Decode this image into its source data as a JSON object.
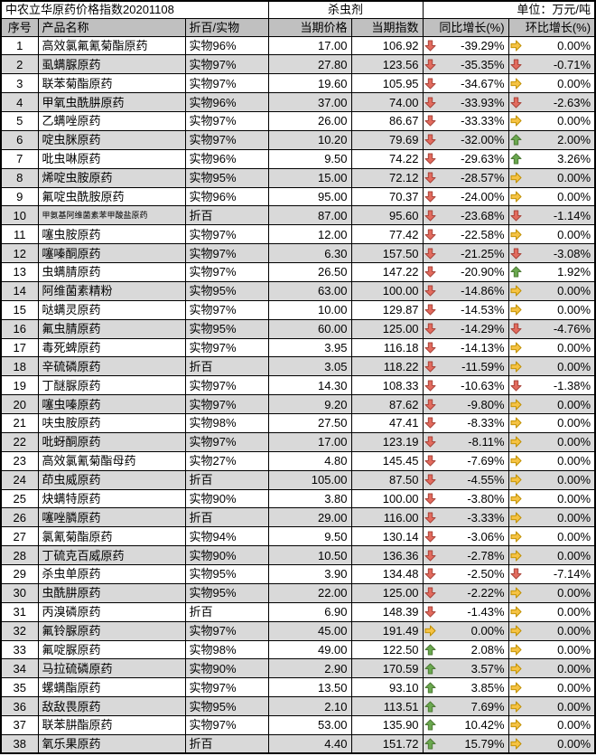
{
  "header": {
    "title": "中农立华原药价格指数20201108",
    "category": "杀虫剂",
    "unit": "单位：万元/吨"
  },
  "columns": [
    "序号",
    "产品名称",
    "折百/实物",
    "当期价格",
    "当期指数",
    "同比增长(%)",
    "环比增长(%)"
  ],
  "colors": {
    "header_bg": "#c0c0c0",
    "stripe_bg": "#d9d9d9",
    "border": "#000000",
    "arrow_up_fill": "#6aa84f",
    "arrow_up_stroke": "#4e7a35",
    "arrow_down_fill": "#e26b5e",
    "arrow_down_stroke": "#a9443a",
    "arrow_flat_fill": "#f5c243",
    "arrow_flat_stroke": "#bf8f00"
  },
  "icons": {
    "up": "arrow-up-icon",
    "down": "arrow-down-icon",
    "flat": "arrow-right-icon"
  },
  "rows": [
    {
      "no": "1",
      "name": "高效氯氟氰菊酯原药",
      "spec": "实物96%",
      "price": "17.00",
      "index": "106.92",
      "yoy_icon": "down",
      "yoy": "-39.29%",
      "mom_icon": "flat",
      "mom": "0.00%"
    },
    {
      "no": "2",
      "name": "虱螨脲原药",
      "spec": "实物97%",
      "price": "27.80",
      "index": "123.56",
      "yoy_icon": "down",
      "yoy": "-35.35%",
      "mom_icon": "down",
      "mom": "-0.71%"
    },
    {
      "no": "3",
      "name": "联苯菊酯原药",
      "spec": "实物97%",
      "price": "19.60",
      "index": "105.95",
      "yoy_icon": "down",
      "yoy": "-34.67%",
      "mom_icon": "flat",
      "mom": "0.00%"
    },
    {
      "no": "4",
      "name": "甲氧虫酰肼原药",
      "spec": "实物96%",
      "price": "37.00",
      "index": "74.00",
      "yoy_icon": "down",
      "yoy": "-33.93%",
      "mom_icon": "down",
      "mom": "-2.63%"
    },
    {
      "no": "5",
      "name": "乙螨唑原药",
      "spec": "实物97%",
      "price": "26.00",
      "index": "86.67",
      "yoy_icon": "down",
      "yoy": "-33.33%",
      "mom_icon": "flat",
      "mom": "0.00%"
    },
    {
      "no": "6",
      "name": "啶虫脒原药",
      "spec": "实物97%",
      "price": "10.20",
      "index": "79.69",
      "yoy_icon": "down",
      "yoy": "-32.00%",
      "mom_icon": "up",
      "mom": "2.00%"
    },
    {
      "no": "7",
      "name": "吡虫啉原药",
      "spec": "实物96%",
      "price": "9.50",
      "index": "74.22",
      "yoy_icon": "down",
      "yoy": "-29.63%",
      "mom_icon": "up",
      "mom": "3.26%"
    },
    {
      "no": "8",
      "name": "烯啶虫胺原药",
      "spec": "实物95%",
      "price": "15.00",
      "index": "72.12",
      "yoy_icon": "down",
      "yoy": "-28.57%",
      "mom_icon": "flat",
      "mom": "0.00%"
    },
    {
      "no": "9",
      "name": "氟啶虫酰胺原药",
      "spec": "实物96%",
      "price": "95.00",
      "index": "70.37",
      "yoy_icon": "down",
      "yoy": "-24.00%",
      "mom_icon": "flat",
      "mom": "0.00%"
    },
    {
      "no": "10",
      "name": "甲氨基阿维菌素苯甲酸盐原药",
      "spec": "折百",
      "price": "87.00",
      "index": "95.60",
      "yoy_icon": "down",
      "yoy": "-23.68%",
      "mom_icon": "down",
      "mom": "-1.14%"
    },
    {
      "no": "11",
      "name": "噻虫胺原药",
      "spec": "实物97%",
      "price": "12.00",
      "index": "77.42",
      "yoy_icon": "down",
      "yoy": "-22.58%",
      "mom_icon": "flat",
      "mom": "0.00%"
    },
    {
      "no": "12",
      "name": "噻嗪酮原药",
      "spec": "实物97%",
      "price": "6.30",
      "index": "157.50",
      "yoy_icon": "down",
      "yoy": "-21.25%",
      "mom_icon": "down",
      "mom": "-3.08%"
    },
    {
      "no": "13",
      "name": "虫螨腈原药",
      "spec": "实物97%",
      "price": "26.50",
      "index": "147.22",
      "yoy_icon": "down",
      "yoy": "-20.90%",
      "mom_icon": "up",
      "mom": "1.92%"
    },
    {
      "no": "14",
      "name": "阿维菌素精粉",
      "spec": "实物95%",
      "price": "63.00",
      "index": "100.00",
      "yoy_icon": "down",
      "yoy": "-14.86%",
      "mom_icon": "flat",
      "mom": "0.00%"
    },
    {
      "no": "15",
      "name": "哒螨灵原药",
      "spec": "实物97%",
      "price": "10.00",
      "index": "129.87",
      "yoy_icon": "down",
      "yoy": "-14.53%",
      "mom_icon": "flat",
      "mom": "0.00%"
    },
    {
      "no": "16",
      "name": "氟虫腈原药",
      "spec": "实物95%",
      "price": "60.00",
      "index": "125.00",
      "yoy_icon": "down",
      "yoy": "-14.29%",
      "mom_icon": "down",
      "mom": "-4.76%"
    },
    {
      "no": "17",
      "name": "毒死蜱原药",
      "spec": "实物97%",
      "price": "3.95",
      "index": "116.18",
      "yoy_icon": "down",
      "yoy": "-14.13%",
      "mom_icon": "flat",
      "mom": "0.00%"
    },
    {
      "no": "18",
      "name": "辛硫磷原药",
      "spec": "折百",
      "price": "3.05",
      "index": "118.22",
      "yoy_icon": "down",
      "yoy": "-11.59%",
      "mom_icon": "flat",
      "mom": "0.00%"
    },
    {
      "no": "19",
      "name": "丁醚脲原药",
      "spec": "实物97%",
      "price": "14.30",
      "index": "108.33",
      "yoy_icon": "down",
      "yoy": "-10.63%",
      "mom_icon": "down",
      "mom": "-1.38%"
    },
    {
      "no": "20",
      "name": "噻虫嗪原药",
      "spec": "实物97%",
      "price": "9.20",
      "index": "87.62",
      "yoy_icon": "down",
      "yoy": "-9.80%",
      "mom_icon": "flat",
      "mom": "0.00%"
    },
    {
      "no": "21",
      "name": "呋虫胺原药",
      "spec": "实物98%",
      "price": "27.50",
      "index": "47.41",
      "yoy_icon": "down",
      "yoy": "-8.33%",
      "mom_icon": "flat",
      "mom": "0.00%"
    },
    {
      "no": "22",
      "name": "吡蚜酮原药",
      "spec": "实物97%",
      "price": "17.00",
      "index": "123.19",
      "yoy_icon": "down",
      "yoy": "-8.11%",
      "mom_icon": "flat",
      "mom": "0.00%"
    },
    {
      "no": "23",
      "name": "高效氯氰菊酯母药",
      "spec": "实物27%",
      "price": "4.80",
      "index": "145.45",
      "yoy_icon": "down",
      "yoy": "-7.69%",
      "mom_icon": "flat",
      "mom": "0.00%"
    },
    {
      "no": "24",
      "name": "茚虫威原药",
      "spec": "折百",
      "price": "105.00",
      "index": "87.50",
      "yoy_icon": "down",
      "yoy": "-4.55%",
      "mom_icon": "flat",
      "mom": "0.00%"
    },
    {
      "no": "25",
      "name": "炔螨特原药",
      "spec": "实物90%",
      "price": "3.80",
      "index": "100.00",
      "yoy_icon": "down",
      "yoy": "-3.80%",
      "mom_icon": "flat",
      "mom": "0.00%"
    },
    {
      "no": "26",
      "name": "噻唑膦原药",
      "spec": "折百",
      "price": "29.00",
      "index": "116.00",
      "yoy_icon": "down",
      "yoy": "-3.33%",
      "mom_icon": "flat",
      "mom": "0.00%"
    },
    {
      "no": "27",
      "name": "氯氰菊酯原药",
      "spec": "实物94%",
      "price": "9.50",
      "index": "130.14",
      "yoy_icon": "down",
      "yoy": "-3.06%",
      "mom_icon": "flat",
      "mom": "0.00%"
    },
    {
      "no": "28",
      "name": "丁硫克百威原药",
      "spec": "实物90%",
      "price": "10.50",
      "index": "136.36",
      "yoy_icon": "down",
      "yoy": "-2.78%",
      "mom_icon": "flat",
      "mom": "0.00%"
    },
    {
      "no": "29",
      "name": "杀虫单原药",
      "spec": "实物95%",
      "price": "3.90",
      "index": "134.48",
      "yoy_icon": "down",
      "yoy": "-2.50%",
      "mom_icon": "down",
      "mom": "-7.14%"
    },
    {
      "no": "30",
      "name": "虫酰肼原药",
      "spec": "实物95%",
      "price": "22.00",
      "index": "125.00",
      "yoy_icon": "down",
      "yoy": "-2.22%",
      "mom_icon": "flat",
      "mom": "0.00%"
    },
    {
      "no": "31",
      "name": "丙溴磷原药",
      "spec": "折百",
      "price": "6.90",
      "index": "148.39",
      "yoy_icon": "down",
      "yoy": "-1.43%",
      "mom_icon": "flat",
      "mom": "0.00%"
    },
    {
      "no": "32",
      "name": "氟铃脲原药",
      "spec": "实物97%",
      "price": "45.00",
      "index": "191.49",
      "yoy_icon": "flat",
      "yoy": "0.00%",
      "mom_icon": "flat",
      "mom": "0.00%"
    },
    {
      "no": "33",
      "name": "氟啶脲原药",
      "spec": "实物98%",
      "price": "49.00",
      "index": "122.50",
      "yoy_icon": "up",
      "yoy": "2.08%",
      "mom_icon": "flat",
      "mom": "0.00%"
    },
    {
      "no": "34",
      "name": "马拉硫磷原药",
      "spec": "实物90%",
      "price": "2.90",
      "index": "170.59",
      "yoy_icon": "up",
      "yoy": "3.57%",
      "mom_icon": "flat",
      "mom": "0.00%"
    },
    {
      "no": "35",
      "name": "螺螨酯原药",
      "spec": "实物97%",
      "price": "13.50",
      "index": "93.10",
      "yoy_icon": "up",
      "yoy": "3.85%",
      "mom_icon": "flat",
      "mom": "0.00%"
    },
    {
      "no": "36",
      "name": "敌敌畏原药",
      "spec": "实物95%",
      "price": "2.10",
      "index": "113.51",
      "yoy_icon": "up",
      "yoy": "7.69%",
      "mom_icon": "flat",
      "mom": "0.00%"
    },
    {
      "no": "37",
      "name": "联苯肼酯原药",
      "spec": "实物97%",
      "price": "53.00",
      "index": "135.90",
      "yoy_icon": "up",
      "yoy": "10.42%",
      "mom_icon": "flat",
      "mom": "0.00%"
    },
    {
      "no": "38",
      "name": "氧乐果原药",
      "spec": "折百",
      "price": "4.40",
      "index": "151.72",
      "yoy_icon": "up",
      "yoy": "15.79%",
      "mom_icon": "flat",
      "mom": "0.00%"
    }
  ]
}
